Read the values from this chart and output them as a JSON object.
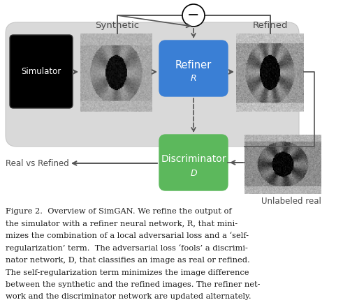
{
  "bg_color": "#ffffff",
  "panel_color": "#d9d9d9",
  "panel_ec": "#c8c8c8",
  "refiner_color": "#3a7fd5",
  "discriminator_color": "#5cb85c",
  "simulator_color": "#000000",
  "text_white": "#ffffff",
  "text_dark": "#4a4a4a",
  "text_blue": "#3a7fd5",
  "arrow_color": "#555555",
  "label_synthetic": "Synthetic",
  "label_refined": "Refined",
  "label_simulator": "Simulator",
  "label_refiner1": "Refiner",
  "label_refiner2": "R",
  "label_disc1": "Discriminator",
  "label_disc2": "D",
  "label_real_vs_refined": "Real vs Refined",
  "label_unlabeled": "Unlabeled real",
  "caption_lines": [
    "Figure 2.  Overview of SimGAN. We refine the output of",
    "the simulator with a refiner neural network, R, that mini-",
    "mizes the combination of a local adversarial loss and a ‘self-",
    "regularization’ term.  The adversarial loss ‘fools’ a discrimi-",
    "nator network, D, that classifies an image as real or refined.",
    "The self-regularization term minimizes the image difference",
    "between the synthetic and the refined images. The refiner net-",
    "work and the discriminator network are updated alternately."
  ],
  "figsize": [
    4.91,
    4.4
  ],
  "dpi": 100
}
